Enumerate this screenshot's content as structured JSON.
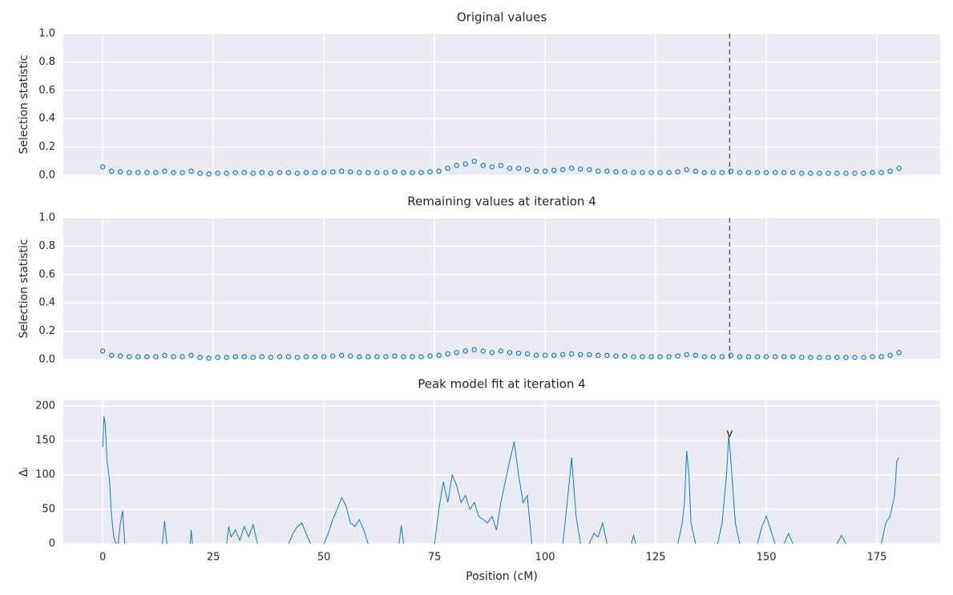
{
  "chart_data": [
    {
      "type": "scatter",
      "title": "Original values",
      "ylabel": "Selection statistic",
      "color": "#1f77b4",
      "grid": true,
      "xlim": [
        -8.9,
        189.3
      ],
      "ylim": [
        0,
        1
      ],
      "vline": 141.7,
      "xticks": [
        0,
        25,
        50,
        75,
        100,
        125,
        150,
        175
      ],
      "yticks": [
        {
          "value": 0,
          "label": "0.0"
        },
        {
          "value": 0.2,
          "label": "0.2"
        },
        {
          "value": 0.4,
          "label": "0.4"
        },
        {
          "value": 0.6,
          "label": "0.6"
        },
        {
          "value": 0.8,
          "label": "0.8"
        },
        {
          "value": 1,
          "label": "1.0"
        }
      ],
      "x": [
        0,
        2,
        4,
        6,
        8,
        10,
        12,
        14,
        16,
        18,
        20,
        22,
        24,
        26,
        28,
        30,
        32,
        34,
        36,
        38,
        40,
        42,
        44,
        46,
        48,
        50,
        52,
        54,
        56,
        58,
        60,
        62,
        64,
        66,
        68,
        70,
        72,
        74,
        76,
        78,
        80,
        82,
        84,
        86,
        88,
        90,
        92,
        94,
        96,
        98,
        100,
        102,
        104,
        106,
        108,
        110,
        112,
        114,
        116,
        118,
        120,
        122,
        124,
        126,
        128,
        130,
        132,
        134,
        136,
        138,
        140,
        142,
        144,
        146,
        148,
        150,
        152,
        154,
        156,
        158,
        160,
        162,
        164,
        166,
        168,
        170,
        172,
        174,
        176,
        178,
        180
      ],
      "values": [
        0.06,
        0.03,
        0.025,
        0.02,
        0.02,
        0.02,
        0.02,
        0.03,
        0.02,
        0.02,
        0.03,
        0.015,
        0.01,
        0.015,
        0.015,
        0.02,
        0.02,
        0.015,
        0.02,
        0.015,
        0.02,
        0.02,
        0.015,
        0.02,
        0.02,
        0.02,
        0.025,
        0.03,
        0.025,
        0.02,
        0.02,
        0.02,
        0.02,
        0.025,
        0.02,
        0.02,
        0.02,
        0.025,
        0.03,
        0.05,
        0.07,
        0.08,
        0.1,
        0.07,
        0.06,
        0.07,
        0.05,
        0.05,
        0.04,
        0.03,
        0.03,
        0.035,
        0.04,
        0.05,
        0.045,
        0.04,
        0.03,
        0.03,
        0.025,
        0.025,
        0.02,
        0.02,
        0.02,
        0.02,
        0.02,
        0.025,
        0.04,
        0.03,
        0.02,
        0.02,
        0.02,
        0.03,
        0.02,
        0.02,
        0.02,
        0.02,
        0.02,
        0.02,
        0.02,
        0.015,
        0.015,
        0.015,
        0.015,
        0.015,
        0.015,
        0.015,
        0.015,
        0.02,
        0.02,
        0.03,
        0.05
      ]
    },
    {
      "type": "scatter",
      "title": "Remaining values at iteration 4",
      "ylabel": "Selection statistic",
      "color": "#1f77b4",
      "grid": true,
      "xlim": [
        -8.9,
        189.3
      ],
      "ylim": [
        0,
        1
      ],
      "vline": 141.7,
      "xticks": [
        0,
        25,
        50,
        75,
        100,
        125,
        150,
        175
      ],
      "yticks": [
        {
          "value": 0,
          "label": "0.0"
        },
        {
          "value": 0.2,
          "label": "0.2"
        },
        {
          "value": 0.4,
          "label": "0.4"
        },
        {
          "value": 0.6,
          "label": "0.6"
        },
        {
          "value": 0.8,
          "label": "0.8"
        },
        {
          "value": 1,
          "label": "1.0"
        }
      ],
      "x": [
        0,
        2,
        4,
        6,
        8,
        10,
        12,
        14,
        16,
        18,
        20,
        22,
        24,
        26,
        28,
        30,
        32,
        34,
        36,
        38,
        40,
        42,
        44,
        46,
        48,
        50,
        52,
        54,
        56,
        58,
        60,
        62,
        64,
        66,
        68,
        70,
        72,
        74,
        76,
        78,
        80,
        82,
        84,
        86,
        88,
        90,
        92,
        94,
        96,
        98,
        100,
        102,
        104,
        106,
        108,
        110,
        112,
        114,
        116,
        118,
        120,
        122,
        124,
        126,
        128,
        130,
        132,
        134,
        136,
        138,
        140,
        142,
        144,
        146,
        148,
        150,
        152,
        154,
        156,
        158,
        160,
        162,
        164,
        166,
        168,
        170,
        172,
        174,
        176,
        178,
        180
      ],
      "values": [
        0.06,
        0.03,
        0.025,
        0.02,
        0.02,
        0.02,
        0.02,
        0.03,
        0.02,
        0.02,
        0.03,
        0.015,
        0.01,
        0.015,
        0.015,
        0.02,
        0.02,
        0.015,
        0.02,
        0.015,
        0.02,
        0.02,
        0.015,
        0.02,
        0.02,
        0.02,
        0.025,
        0.03,
        0.025,
        0.02,
        0.02,
        0.02,
        0.02,
        0.025,
        0.02,
        0.02,
        0.02,
        0.025,
        0.03,
        0.04,
        0.05,
        0.06,
        0.07,
        0.06,
        0.05,
        0.06,
        0.05,
        0.045,
        0.04,
        0.03,
        0.03,
        0.03,
        0.035,
        0.04,
        0.035,
        0.035,
        0.03,
        0.03,
        0.025,
        0.025,
        0.02,
        0.02,
        0.02,
        0.02,
        0.02,
        0.025,
        0.035,
        0.03,
        0.02,
        0.02,
        0.02,
        0.03,
        0.02,
        0.02,
        0.02,
        0.02,
        0.02,
        0.02,
        0.02,
        0.015,
        0.015,
        0.015,
        0.015,
        0.015,
        0.015,
        0.015,
        0.015,
        0.02,
        0.02,
        0.03,
        0.05
      ]
    },
    {
      "type": "line",
      "title": "Peak model fit at iteration 4",
      "ylabel": "Δᵢ",
      "xlabel": "Position (cM)",
      "color": "#1f77b4",
      "grid": true,
      "xlim": [
        -8.9,
        189.3
      ],
      "ylim": [
        0,
        208
      ],
      "xticks": [
        0,
        25,
        50,
        75,
        100,
        125,
        150,
        175
      ],
      "yticks": [
        0,
        50,
        100,
        150,
        200
      ],
      "annotation": {
        "text": "v",
        "x": 141.7,
        "y": 160
      },
      "x": [
        0,
        0.3,
        0.6,
        1,
        1.5,
        2,
        2.5,
        3,
        3.2,
        3.5,
        4,
        4.5,
        5,
        5.5,
        13.5,
        14,
        14.5,
        15,
        19.8,
        20,
        20.3,
        21,
        28,
        28.5,
        29,
        30,
        31,
        32,
        33,
        34,
        35,
        36,
        42,
        43,
        44,
        45,
        46,
        47,
        48,
        50,
        51,
        52,
        53,
        54,
        55,
        56,
        57,
        58,
        59,
        60,
        61,
        67,
        67.5,
        68,
        70,
        75,
        76,
        77,
        78,
        79,
        80,
        81,
        82,
        83,
        84,
        85,
        86,
        87,
        88,
        89,
        90,
        91,
        92,
        93,
        94,
        95,
        96,
        97,
        98,
        104,
        105,
        106,
        107,
        108,
        109,
        110,
        111,
        112,
        113,
        114,
        115,
        119.5,
        120,
        120.5,
        122,
        130,
        131,
        131.5,
        132,
        132.5,
        133,
        134,
        136,
        139,
        140,
        141,
        141.5,
        142,
        143,
        144,
        146,
        148,
        149,
        150,
        151,
        152,
        153,
        154,
        155,
        156,
        158,
        166,
        167,
        168,
        169,
        176,
        177,
        178,
        179,
        179.5,
        180
      ],
      "values": [
        140,
        185,
        172,
        120,
        95,
        40,
        10,
        0,
        null,
        0,
        30,
        48,
        0,
        null,
        0,
        33,
        0,
        null,
        0,
        20,
        0,
        null,
        0,
        25,
        10,
        20,
        5,
        25,
        10,
        28,
        0,
        null,
        0,
        15,
        25,
        30,
        15,
        0,
        null,
        0,
        15,
        35,
        50,
        67,
        55,
        30,
        25,
        35,
        20,
        0,
        null,
        0,
        27,
        0,
        null,
        0,
        50,
        90,
        60,
        100,
        85,
        60,
        70,
        50,
        60,
        40,
        35,
        30,
        40,
        20,
        60,
        90,
        120,
        148,
        100,
        60,
        70,
        0,
        null,
        0,
        60,
        125,
        40,
        0,
        null,
        0,
        15,
        10,
        30,
        0,
        null,
        0,
        12,
        0,
        null,
        0,
        30,
        60,
        135,
        100,
        30,
        0,
        null,
        0,
        30,
        100,
        157,
        120,
        30,
        0,
        null,
        0,
        25,
        40,
        20,
        0,
        null,
        0,
        15,
        0,
        null,
        0,
        12,
        0,
        null,
        0,
        30,
        40,
        70,
        120,
        125
      ]
    }
  ]
}
